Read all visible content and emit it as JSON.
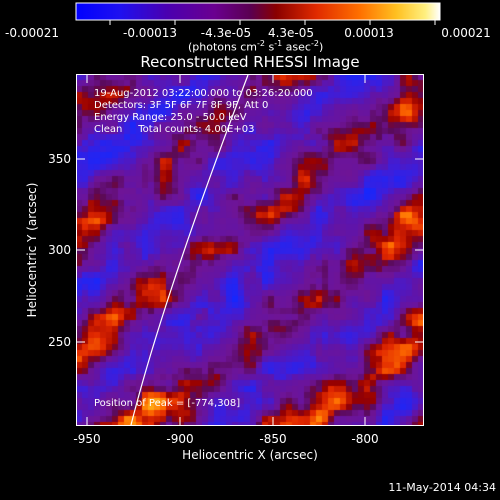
{
  "colorbar": {
    "tick_labels": [
      "-0.00021",
      "-0.00013",
      "-4.3e-05",
      "4.3e-05",
      "0.00013",
      "0.00021"
    ],
    "unit_label": "(photons cm",
    "unit_label_parts": [
      "(photons cm",
      "-2",
      " s",
      "-1",
      " asec",
      "-2",
      ")"
    ],
    "min": -0.00021,
    "max": 0.00021,
    "colors": [
      "#0000ff",
      "#2a00e0",
      "#4a00b0",
      "#5a0095",
      "#6a0080",
      "#7a0040",
      "#a00000",
      "#d82000",
      "#ff6a00",
      "#ffb000",
      "#ffe060",
      "#ffffff"
    ]
  },
  "plot": {
    "title": "Reconstructed RHESSI Image",
    "xlabel": "Heliocentric X (arcsec)",
    "ylabel": "Heliocentric Y (arcsec)",
    "xticks": [
      "-950",
      "-900",
      "-850",
      "-800"
    ],
    "yticks": [
      "350",
      "300",
      "250"
    ],
    "x_range": [
      -960,
      -780
    ],
    "y_range": [
      203,
      382
    ],
    "limb_color": "#ffffff",
    "info_lines": [
      "19-Aug-2012 03:22:00.000 to 03:26:20.000",
      "Detectors: 3F 5F 6F 7F 8F 9F, Att 0",
      "Energy Range: 25.0 - 50.0 keV",
      "Clean     Total counts: 4.00E+03"
    ],
    "peak_text": "Position of Peak = [-774,308]",
    "peak_position": [
      -774,
      308
    ]
  },
  "footer": {
    "timestamp": "11-May-2014 04:34"
  }
}
